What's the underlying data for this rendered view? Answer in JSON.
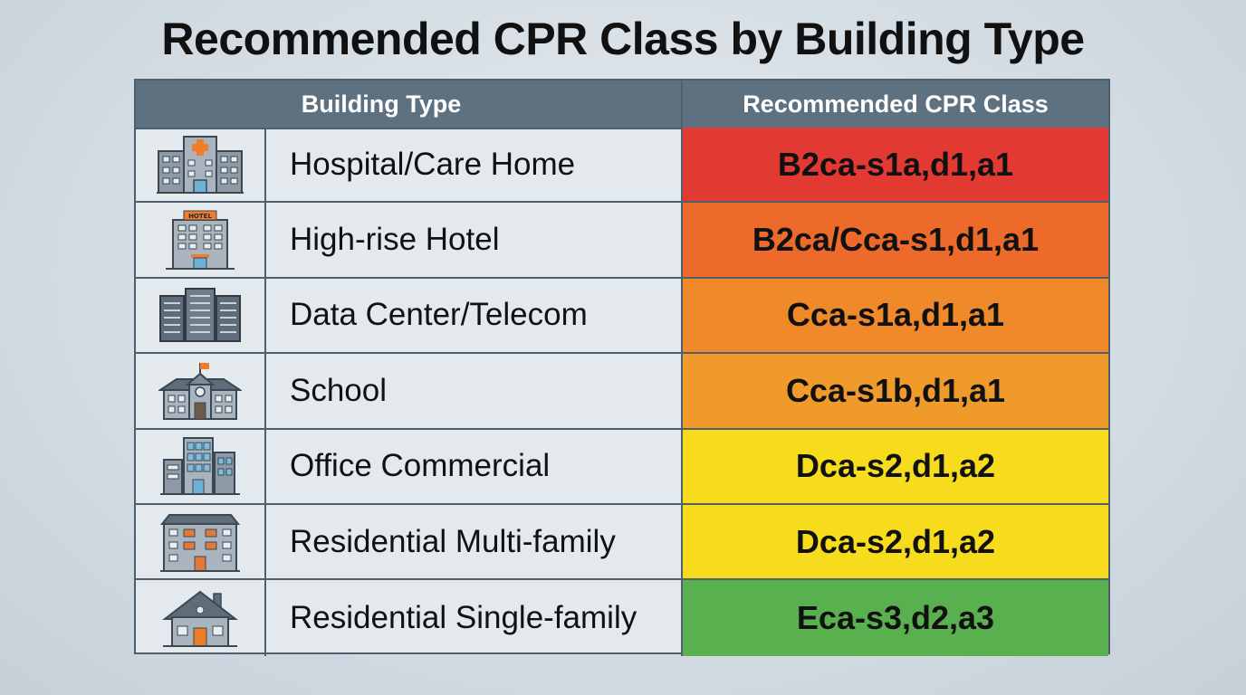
{
  "title": "Recommended CPR Class by Building Type",
  "colors": {
    "header_bg": "#5e7181",
    "row_bg": "#e3e9ed",
    "red": "#e23a32",
    "red_orange": "#ee6a2a",
    "orange": "#f0892a",
    "orange_light": "#f09a2c",
    "yellow": "#f7dc1e",
    "green": "#58b14e"
  },
  "chart_data": {
    "type": "table",
    "columns": [
      "Building Type",
      "Recommended CPR Class"
    ],
    "rows": [
      {
        "icon": "hospital-icon",
        "building": "Hospital/Care Home",
        "cpr_class": "B2ca-s1a,d1,a1",
        "color": "#e23a32"
      },
      {
        "icon": "hotel-icon",
        "building": "High-rise Hotel",
        "cpr_class": "B2ca/Cca-s1,d1,a1",
        "color": "#ee6a2a"
      },
      {
        "icon": "data-center-icon",
        "building": "Data Center/Telecom",
        "cpr_class": "Cca-s1a,d1,a1",
        "color": "#f0892a"
      },
      {
        "icon": "school-icon",
        "building": "School",
        "cpr_class": "Cca-s1b,d1,a1",
        "color": "#f09a2c"
      },
      {
        "icon": "office-icon",
        "building": "Office Commercial",
        "cpr_class": "Dca-s2,d1,a2",
        "color": "#f7dc1e"
      },
      {
        "icon": "apartment-icon",
        "building": "Residential Multi-family",
        "cpr_class": "Dca-s2,d1,a2",
        "color": "#f7dc1e"
      },
      {
        "icon": "house-icon",
        "building": "Residential Single-family",
        "cpr_class": "Eca-s3,d2,a3",
        "color": "#58b14e"
      }
    ]
  }
}
